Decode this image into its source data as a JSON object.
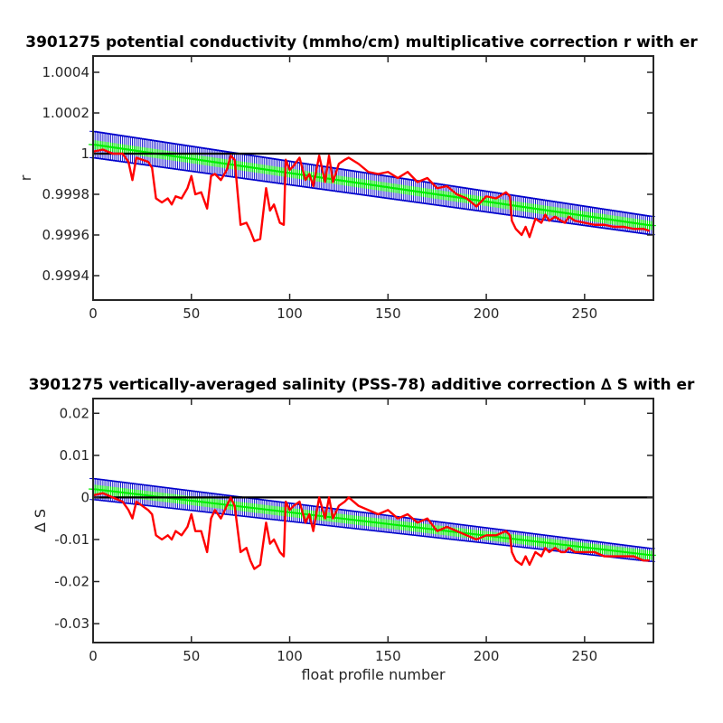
{
  "chart_data": [
    {
      "type": "line",
      "title": "3901275 potential conductivity (mmho/cm) multiplicative correction r with er",
      "xlabel": "",
      "ylabel": "r",
      "xlim": [
        0,
        285
      ],
      "ylim": [
        0.99928,
        1.00048
      ],
      "xticks": [
        0,
        50,
        100,
        150,
        200,
        250
      ],
      "xtick_labels": [
        "0",
        "50",
        "100",
        "150",
        "200",
        "250"
      ],
      "yticks": [
        0.9994,
        0.9996,
        0.9998,
        1.0,
        1.0002,
        1.0004
      ],
      "ytick_labels": [
        "0.9994",
        "0.9996",
        "0.9998",
        "1",
        "1.0002",
        "1.0004"
      ],
      "grid": false,
      "legend": "none",
      "reference_line": {
        "y": 1.0,
        "color": "#000000"
      },
      "series": [
        {
          "role": "error_band",
          "color": "#0000cc",
          "x": [
            0,
            285
          ],
          "upper": [
            1.00011,
            0.99969
          ],
          "lower": [
            0.99998,
            0.9996
          ]
        },
        {
          "role": "fit",
          "color": "#00ee00",
          "x": [
            0,
            285
          ],
          "values": [
            1.000045,
            0.999645
          ]
        },
        {
          "role": "profile_values",
          "color": "#ff0000",
          "x": [
            0,
            5,
            10,
            15,
            18,
            20,
            22,
            25,
            28,
            30,
            32,
            35,
            38,
            40,
            42,
            45,
            48,
            50,
            52,
            55,
            58,
            60,
            62,
            65,
            68,
            70,
            72,
            75,
            78,
            80,
            82,
            85,
            88,
            90,
            92,
            95,
            97,
            98,
            100,
            102,
            105,
            108,
            110,
            112,
            115,
            118,
            120,
            122,
            125,
            128,
            130,
            135,
            140,
            145,
            150,
            155,
            160,
            165,
            170,
            175,
            180,
            185,
            190,
            195,
            200,
            205,
            210,
            212,
            213,
            215,
            218,
            220,
            222,
            225,
            228,
            230,
            232,
            235,
            238,
            240,
            242,
            245,
            250,
            255,
            260,
            265,
            270,
            275,
            280,
            283
          ],
          "values": [
            1.00001,
            1.00002,
            1.0,
            1.0,
            0.99996,
            0.99987,
            0.99998,
            0.99997,
            0.99996,
            0.99993,
            0.99978,
            0.99976,
            0.99978,
            0.99975,
            0.99979,
            0.99978,
            0.99983,
            0.99989,
            0.9998,
            0.99981,
            0.99973,
            0.99989,
            0.9999,
            0.99987,
            0.99992,
            0.99999,
            0.99997,
            0.99965,
            0.99966,
            0.99962,
            0.99957,
            0.99958,
            0.99983,
            0.99972,
            0.99975,
            0.99966,
            0.99965,
            0.99997,
            0.99992,
            0.99994,
            0.99998,
            0.99987,
            0.9999,
            0.99984,
            0.99999,
            0.99986,
            0.99999,
            0.99986,
            0.99995,
            0.99997,
            0.99998,
            0.99995,
            0.99991,
            0.9999,
            0.99991,
            0.99988,
            0.99991,
            0.99986,
            0.99988,
            0.99983,
            0.99984,
            0.9998,
            0.99978,
            0.99974,
            0.99979,
            0.99978,
            0.99981,
            0.99979,
            0.99967,
            0.99963,
            0.9996,
            0.99964,
            0.99959,
            0.99968,
            0.99966,
            0.9997,
            0.99967,
            0.99969,
            0.99967,
            0.99966,
            0.99969,
            0.99967,
            0.99966,
            0.99965,
            0.99965,
            0.99964,
            0.99964,
            0.99963,
            0.99963,
            0.99962
          ]
        }
      ]
    },
    {
      "type": "line",
      "title": "3901275 vertically-averaged salinity (PSS-78) additive correction ∆ S with er",
      "xlabel": "float profile number",
      "ylabel": "∆ S",
      "xlim": [
        0,
        285
      ],
      "ylim": [
        -0.0345,
        0.0235
      ],
      "xticks": [
        0,
        50,
        100,
        150,
        200,
        250
      ],
      "xtick_labels": [
        "0",
        "50",
        "100",
        "150",
        "200",
        "250"
      ],
      "yticks": [
        -0.03,
        -0.02,
        -0.01,
        0,
        0.01,
        0.02
      ],
      "ytick_labels": [
        "-0.03",
        "-0.02",
        "-0.01",
        "0",
        "0.01",
        "0.02"
      ],
      "grid": false,
      "legend": "none",
      "reference_line": {
        "y": 0,
        "color": "#000000"
      },
      "series": [
        {
          "role": "error_band",
          "color": "#0000cc",
          "x": [
            0,
            285
          ],
          "upper": [
            0.0045,
            -0.0122
          ],
          "lower": [
            -0.0005,
            -0.0153
          ]
        },
        {
          "role": "fit",
          "color": "#00ee00",
          "x": [
            0,
            285
          ],
          "values": [
            0.002,
            -0.0138
          ]
        },
        {
          "role": "profile_values",
          "color": "#ff0000",
          "x": [
            0,
            5,
            10,
            15,
            18,
            20,
            22,
            25,
            28,
            30,
            32,
            35,
            38,
            40,
            42,
            45,
            48,
            50,
            52,
            55,
            58,
            60,
            62,
            65,
            68,
            70,
            72,
            75,
            78,
            80,
            82,
            85,
            88,
            90,
            92,
            95,
            97,
            98,
            100,
            102,
            105,
            108,
            110,
            112,
            115,
            118,
            120,
            122,
            125,
            128,
            130,
            135,
            140,
            145,
            150,
            155,
            160,
            165,
            170,
            175,
            180,
            185,
            190,
            195,
            200,
            205,
            210,
            212,
            213,
            215,
            218,
            220,
            222,
            225,
            228,
            230,
            232,
            235,
            238,
            240,
            242,
            245,
            250,
            255,
            260,
            265,
            270,
            275,
            280,
            283
          ],
          "values": [
            0.0005,
            0.001,
            0.0,
            -0.001,
            -0.003,
            -0.005,
            -0.001,
            -0.002,
            -0.003,
            -0.004,
            -0.009,
            -0.01,
            -0.009,
            -0.01,
            -0.008,
            -0.009,
            -0.007,
            -0.004,
            -0.008,
            -0.008,
            -0.013,
            -0.005,
            -0.003,
            -0.005,
            -0.002,
            0.0,
            -0.002,
            -0.013,
            -0.012,
            -0.015,
            -0.017,
            -0.016,
            -0.006,
            -0.011,
            -0.01,
            -0.013,
            -0.014,
            -0.001,
            -0.003,
            -0.002,
            -0.001,
            -0.006,
            -0.004,
            -0.008,
            0.0,
            -0.005,
            0.0,
            -0.005,
            -0.002,
            -0.001,
            0.0,
            -0.002,
            -0.003,
            -0.004,
            -0.003,
            -0.005,
            -0.004,
            -0.006,
            -0.005,
            -0.008,
            -0.007,
            -0.008,
            -0.009,
            -0.01,
            -0.009,
            -0.009,
            -0.008,
            -0.009,
            -0.013,
            -0.015,
            -0.016,
            -0.014,
            -0.016,
            -0.013,
            -0.014,
            -0.012,
            -0.013,
            -0.012,
            -0.013,
            -0.013,
            -0.012,
            -0.013,
            -0.013,
            -0.013,
            -0.014,
            -0.014,
            -0.014,
            -0.014,
            -0.015,
            -0.015
          ]
        }
      ]
    }
  ]
}
